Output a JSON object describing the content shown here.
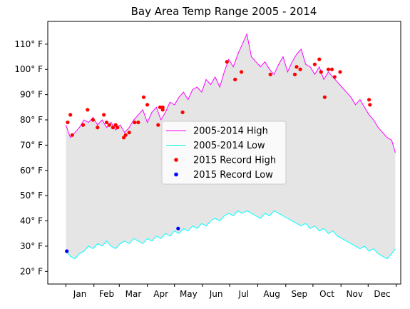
{
  "chart_data": {
    "type": "line",
    "title": "Bay Area Temp Range 2005 - 2014",
    "xlabel": "",
    "ylabel": "",
    "ylim": [
      15,
      119
    ],
    "xlim": [
      -20,
      370
    ],
    "grid": false,
    "legend_position": "center",
    "x_tick_labels": [
      "Jan",
      "Feb",
      "Mar",
      "Apr",
      "May",
      "Jun",
      "Jul",
      "Aug",
      "Sep",
      "Oct",
      "Nov",
      "Dec"
    ],
    "y_ticks": [
      20,
      30,
      40,
      50,
      60,
      70,
      80,
      90,
      100,
      110
    ],
    "y_tick_labels": [
      "20° F",
      "30° F",
      "40° F",
      "50° F",
      "60° F",
      "70° F",
      "80° F",
      "90° F",
      "100° F",
      "110° F"
    ],
    "fill_color": "#e5e5e5",
    "series": [
      {
        "name": "2005-2014 High",
        "color": "#ff00ff",
        "x": [
          0,
          5,
          10,
          15,
          20,
          25,
          30,
          35,
          40,
          45,
          50,
          55,
          60,
          65,
          70,
          75,
          80,
          85,
          90,
          95,
          100,
          105,
          110,
          115,
          120,
          125,
          130,
          135,
          140,
          145,
          150,
          155,
          160,
          165,
          170,
          175,
          180,
          185,
          190,
          195,
          200,
          205,
          210,
          215,
          220,
          225,
          230,
          235,
          240,
          245,
          250,
          255,
          260,
          265,
          270,
          275,
          280,
          285,
          290,
          295,
          300,
          305,
          310,
          315,
          320,
          325,
          330,
          335,
          340,
          345,
          350,
          355,
          360,
          364
        ],
        "values": [
          78,
          73,
          75,
          77,
          80,
          79,
          81,
          78,
          80,
          77,
          79,
          76,
          78,
          75,
          77,
          80,
          82,
          84,
          79,
          83,
          85,
          80,
          83,
          87,
          86,
          89,
          91,
          88,
          92,
          93,
          91,
          96,
          94,
          97,
          93,
          99,
          104,
          101,
          106,
          110,
          114,
          105,
          103,
          101,
          103,
          100,
          98,
          102,
          105,
          99,
          103,
          106,
          108,
          102,
          101,
          98,
          101,
          96,
          99,
          97,
          95,
          93,
          91,
          89,
          86,
          88,
          85,
          82,
          80,
          77,
          75,
          73,
          72,
          67
        ]
      },
      {
        "name": "2005-2014 Low",
        "color": "#00ffff",
        "x": [
          0,
          5,
          10,
          15,
          20,
          25,
          30,
          35,
          40,
          45,
          50,
          55,
          60,
          65,
          70,
          75,
          80,
          85,
          90,
          95,
          100,
          105,
          110,
          115,
          120,
          125,
          130,
          135,
          140,
          145,
          150,
          155,
          160,
          165,
          170,
          175,
          180,
          185,
          190,
          195,
          200,
          205,
          210,
          215,
          220,
          225,
          230,
          235,
          240,
          245,
          250,
          255,
          260,
          265,
          270,
          275,
          280,
          285,
          290,
          295,
          300,
          305,
          310,
          315,
          320,
          325,
          330,
          335,
          340,
          345,
          350,
          355,
          360,
          364
        ],
        "values": [
          28,
          26,
          25,
          27,
          28,
          30,
          29,
          31,
          30,
          32,
          30,
          29,
          31,
          32,
          31,
          33,
          32,
          31,
          33,
          32,
          34,
          33,
          35,
          34,
          36,
          35,
          37,
          36,
          38,
          37,
          39,
          38,
          40,
          41,
          40,
          42,
          43,
          42,
          44,
          43,
          44,
          43,
          42,
          41,
          43,
          42,
          44,
          43,
          42,
          41,
          40,
          39,
          38,
          39,
          37,
          38,
          36,
          37,
          35,
          36,
          34,
          33,
          32,
          31,
          30,
          29,
          30,
          28,
          29,
          27,
          26,
          25,
          27,
          29
        ]
      }
    ],
    "scatter": [
      {
        "name": "2015 Record High",
        "color": "#ff0000",
        "points": [
          [
            2,
            79
          ],
          [
            5,
            82
          ],
          [
            7,
            74
          ],
          [
            19,
            78
          ],
          [
            24,
            84
          ],
          [
            30,
            80
          ],
          [
            35,
            77
          ],
          [
            42,
            82
          ],
          [
            45,
            79
          ],
          [
            48,
            78
          ],
          [
            52,
            77
          ],
          [
            55,
            78
          ],
          [
            57,
            77
          ],
          [
            64,
            73
          ],
          [
            66,
            74
          ],
          [
            70,
            75
          ],
          [
            76,
            79
          ],
          [
            80,
            79
          ],
          [
            86,
            89
          ],
          [
            90,
            86
          ],
          [
            102,
            78
          ],
          [
            104,
            85
          ],
          [
            107,
            85
          ],
          [
            107,
            84
          ],
          [
            129,
            83
          ],
          [
            178,
            103
          ],
          [
            187,
            96
          ],
          [
            194,
            99
          ],
          [
            226,
            98
          ],
          [
            253,
            98
          ],
          [
            255,
            101
          ],
          [
            259,
            100
          ],
          [
            275,
            102
          ],
          [
            280,
            104
          ],
          [
            282,
            99
          ],
          [
            286,
            89
          ],
          [
            290,
            100
          ],
          [
            294,
            100
          ],
          [
            297,
            97
          ],
          [
            303,
            99
          ],
          [
            335,
            88
          ],
          [
            336,
            86
          ]
        ]
      },
      {
        "name": "2015 Record Low",
        "color": "#0000ff",
        "points": [
          [
            1,
            28
          ],
          [
            124,
            37
          ]
        ]
      }
    ]
  }
}
